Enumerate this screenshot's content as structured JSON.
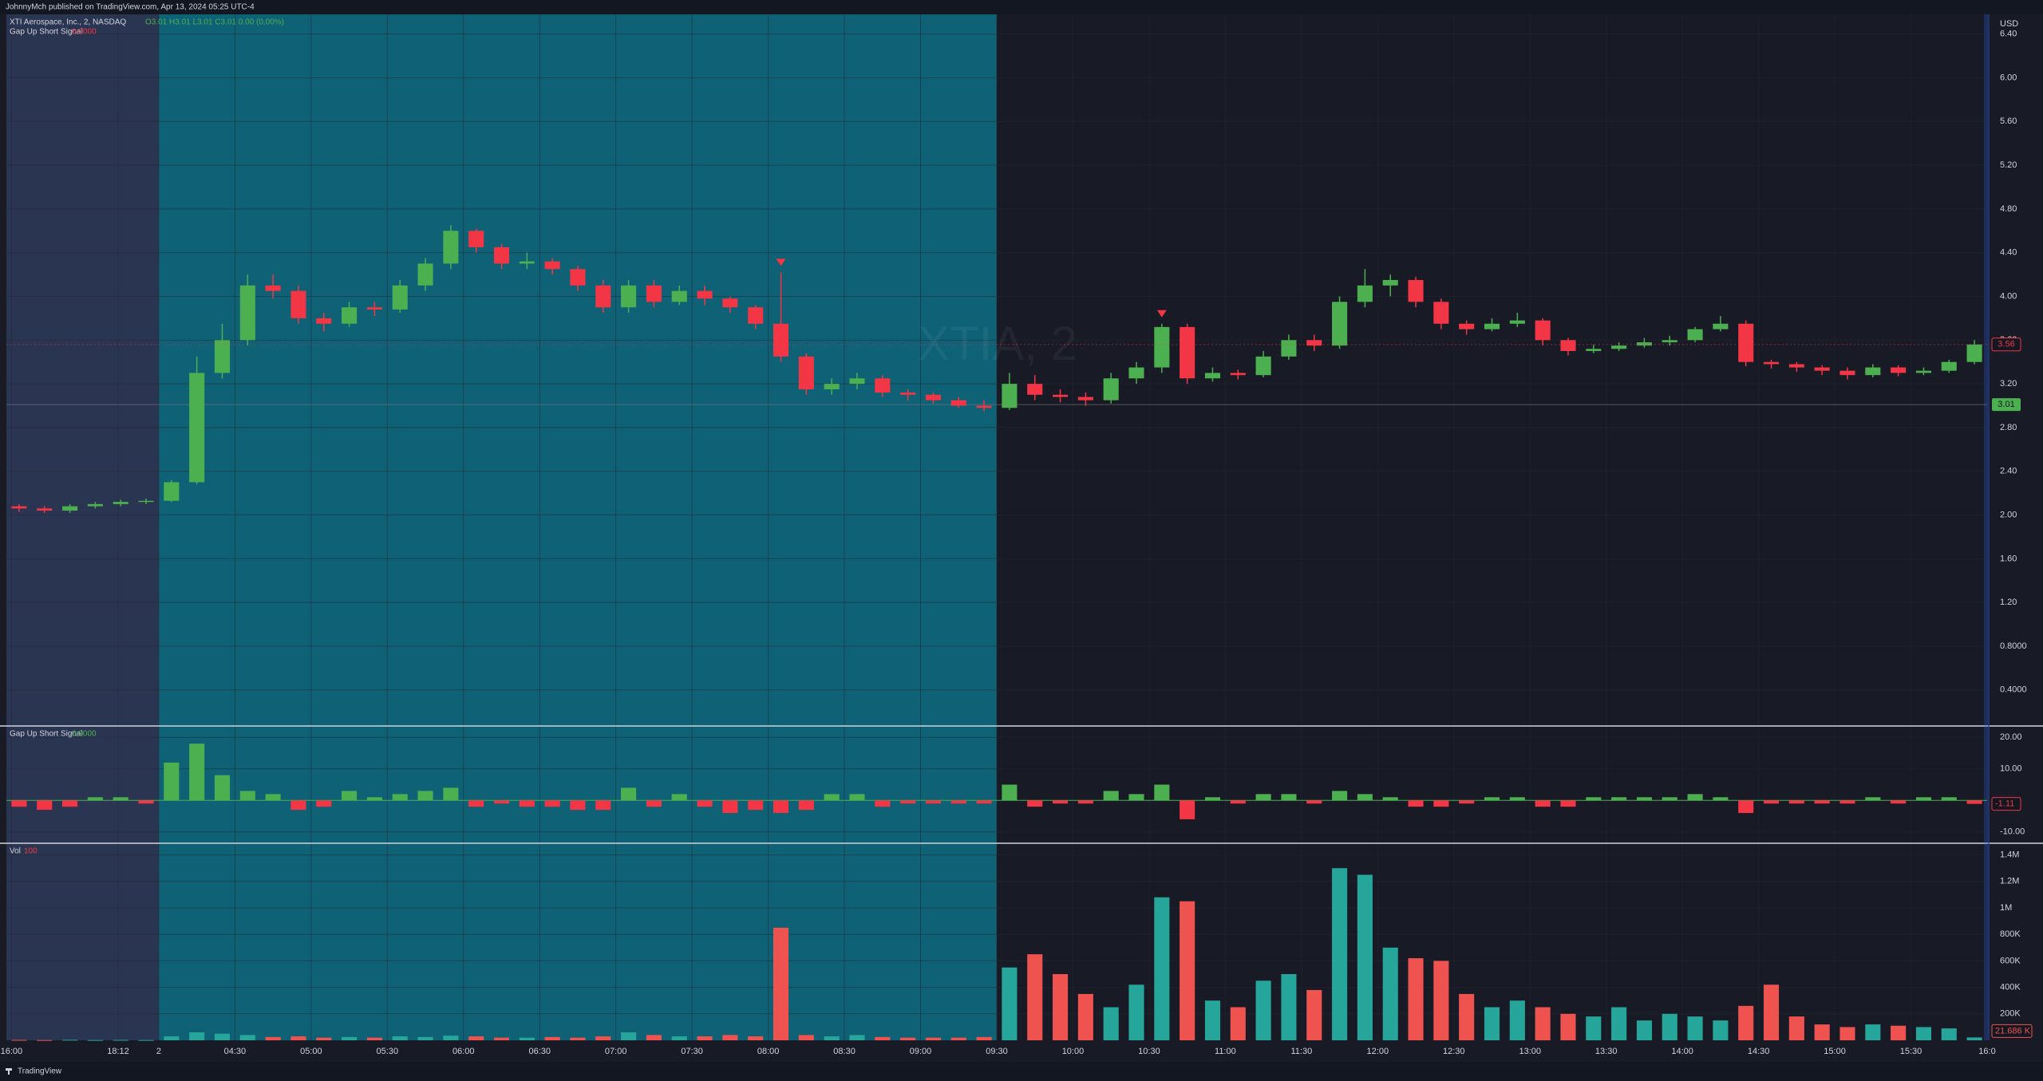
{
  "header": "JohnnyMch published on TradingView.com, Apr 13, 2024 05:25 UTC-4",
  "footer": "TradingView",
  "currency": "USD",
  "watermark": "XTIA, 2",
  "chart_data": [
    {
      "type": "candlestick",
      "title": "XTI Aerospace, Inc., 2, NASDAQ",
      "legend_values": "O3.01 H3.01 L3.01 C3.01 0.00 (0.00%)",
      "indicator_name": "Gap Up Short Signal",
      "indicator_value": "0.0000",
      "colors": {
        "up": "#4caf50",
        "down": "#f23645",
        "signal": "#f23645"
      },
      "sessions": [
        {
          "from": 0,
          "to": 6,
          "color": "#2a3552"
        },
        {
          "from": 6,
          "to": 39,
          "color": "#0f6175"
        }
      ],
      "open": [
        2.08,
        2.06,
        2.04,
        2.08,
        2.1,
        2.12,
        2.13,
        2.3,
        3.3,
        3.6,
        4.1,
        4.05,
        3.8,
        3.75,
        3.9,
        3.88,
        4.1,
        4.3,
        4.6,
        4.45,
        4.3,
        4.32,
        4.25,
        4.1,
        3.9,
        4.1,
        3.95,
        4.05,
        3.98,
        3.9,
        3.75,
        3.45,
        3.15,
        3.2,
        3.25,
        3.12,
        3.1,
        3.05,
        3.0,
        2.98,
        3.2,
        3.1,
        3.08,
        3.05,
        3.25,
        3.35,
        3.72,
        3.25,
        3.3,
        3.28,
        3.45,
        3.6,
        3.55,
        3.95,
        4.1,
        4.15,
        3.95,
        3.75,
        3.7,
        3.75,
        3.78,
        3.6,
        3.5,
        3.52,
        3.55,
        3.58,
        3.6,
        3.7,
        3.75,
        3.4,
        3.38,
        3.35,
        3.32,
        3.28,
        3.35,
        3.3,
        3.32,
        3.4
      ],
      "high": [
        2.1,
        2.08,
        2.1,
        2.12,
        2.14,
        2.15,
        2.32,
        3.45,
        3.75,
        4.2,
        4.2,
        4.1,
        3.85,
        3.95,
        3.95,
        4.15,
        4.35,
        4.65,
        4.62,
        4.48,
        4.4,
        4.35,
        4.28,
        4.15,
        4.15,
        4.15,
        4.1,
        4.1,
        4.0,
        3.92,
        4.22,
        3.48,
        3.25,
        3.3,
        3.28,
        3.15,
        3.12,
        3.08,
        3.05,
        3.3,
        3.28,
        3.15,
        3.12,
        3.3,
        3.4,
        3.75,
        3.75,
        3.35,
        3.33,
        3.5,
        3.65,
        3.65,
        4.0,
        4.25,
        4.2,
        4.18,
        3.98,
        3.78,
        3.8,
        3.85,
        3.8,
        3.62,
        3.56,
        3.58,
        3.62,
        3.64,
        3.72,
        3.82,
        3.78,
        3.42,
        3.4,
        3.37,
        3.35,
        3.38,
        3.37,
        3.35,
        3.42,
        3.6
      ],
      "low": [
        2.03,
        2.02,
        2.02,
        2.06,
        2.08,
        2.1,
        2.12,
        2.28,
        3.25,
        3.55,
        3.98,
        3.75,
        3.68,
        3.72,
        3.82,
        3.85,
        4.05,
        4.25,
        4.4,
        4.25,
        4.25,
        4.2,
        4.05,
        3.85,
        3.85,
        3.9,
        3.92,
        3.92,
        3.85,
        3.7,
        3.4,
        3.1,
        3.1,
        3.15,
        3.08,
        3.05,
        3.02,
        2.98,
        2.95,
        2.96,
        3.05,
        3.03,
        3.0,
        3.02,
        3.2,
        3.3,
        3.2,
        3.22,
        3.24,
        3.26,
        3.42,
        3.5,
        3.52,
        3.9,
        4.0,
        3.9,
        3.7,
        3.65,
        3.68,
        3.72,
        3.55,
        3.46,
        3.48,
        3.5,
        3.53,
        3.55,
        3.58,
        3.68,
        3.36,
        3.34,
        3.31,
        3.28,
        3.24,
        3.26,
        3.27,
        3.28,
        3.3,
        3.38
      ],
      "close": [
        2.06,
        2.04,
        2.08,
        2.1,
        2.12,
        2.13,
        2.3,
        3.3,
        3.6,
        4.1,
        4.05,
        3.8,
        3.75,
        3.9,
        3.88,
        4.1,
        4.3,
        4.6,
        4.45,
        4.3,
        4.32,
        4.25,
        4.1,
        3.9,
        4.1,
        3.95,
        4.05,
        3.98,
        3.9,
        3.75,
        3.45,
        3.15,
        3.2,
        3.25,
        3.12,
        3.1,
        3.05,
        3.0,
        2.98,
        3.2,
        3.1,
        3.08,
        3.05,
        3.25,
        3.35,
        3.72,
        3.25,
        3.3,
        3.28,
        3.45,
        3.6,
        3.55,
        3.95,
        4.1,
        4.15,
        3.95,
        3.75,
        3.7,
        3.75,
        3.78,
        3.6,
        3.5,
        3.52,
        3.55,
        3.58,
        3.6,
        3.7,
        3.75,
        3.4,
        3.38,
        3.35,
        3.32,
        3.28,
        3.35,
        3.3,
        3.32,
        3.4,
        3.56
      ],
      "signals": [
        30,
        45
      ],
      "prev_close": 3.01,
      "xlim": [
        0,
        78
      ],
      "xticks": [
        {
          "value": 0.2,
          "label": "16:00"
        },
        {
          "value": 4.4,
          "label": "18:12"
        },
        {
          "value": 6,
          "label": "2"
        },
        {
          "value": 9,
          "label": "04:30"
        },
        {
          "value": 12,
          "label": "05:00"
        },
        {
          "value": 15,
          "label": "05:30"
        },
        {
          "value": 18,
          "label": "06:00"
        },
        {
          "value": 21,
          "label": "06:30"
        },
        {
          "value": 24,
          "label": "07:00"
        },
        {
          "value": 27,
          "label": "07:30"
        },
        {
          "value": 30,
          "label": "08:00"
        },
        {
          "value": 33,
          "label": "08:30"
        },
        {
          "value": 36,
          "label": "09:00"
        },
        {
          "value": 39,
          "label": "09:30"
        },
        {
          "value": 42,
          "label": "10:00"
        },
        {
          "value": 45,
          "label": "10:30"
        },
        {
          "value": 48,
          "label": "11:00"
        },
        {
          "value": 51,
          "label": "11:30"
        },
        {
          "value": 54,
          "label": "12:00"
        },
        {
          "value": 57,
          "label": "12:30"
        },
        {
          "value": 60,
          "label": "13:00"
        },
        {
          "value": 63,
          "label": "13:30"
        },
        {
          "value": 66,
          "label": "14:00"
        },
        {
          "value": 69,
          "label": "14:30"
        },
        {
          "value": 72,
          "label": "15:00"
        },
        {
          "value": 75,
          "label": "15:30"
        },
        {
          "value": 78,
          "label": "16:0"
        }
      ],
      "ylim": [
        0.07,
        6.58
      ],
      "yticks": [
        {
          "value": 6.4,
          "label": "6.40"
        },
        {
          "value": 6,
          "label": "6.00"
        },
        {
          "value": 5.6,
          "label": "5.60"
        },
        {
          "value": 5.2,
          "label": "5.20"
        },
        {
          "value": 4.8,
          "label": "4.80"
        },
        {
          "value": 4.4,
          "label": "4.40"
        },
        {
          "value": 4,
          "label": "4.00"
        },
        {
          "value": 3.6,
          "label": "3.60"
        },
        {
          "value": 3.2,
          "label": "3.20"
        },
        {
          "value": 2.8,
          "label": "2.80"
        },
        {
          "value": 2.4,
          "label": "2.40"
        },
        {
          "value": 2,
          "label": "2.00"
        },
        {
          "value": 1.6,
          "label": "1.60"
        },
        {
          "value": 1.2,
          "label": "1.20"
        },
        {
          "value": 0.8,
          "label": "0.8000"
        },
        {
          "value": 0.4,
          "label": "0.4000"
        }
      ],
      "grid": true
    },
    {
      "type": "bar",
      "title": "Gap Up Short Signal",
      "legend_value": "0.0000",
      "colors": {
        "up": "#4caf50",
        "down": "#f23645"
      },
      "values": [
        -2,
        -3,
        -2,
        1,
        1,
        -1,
        12,
        18,
        8,
        3,
        2,
        -3,
        -2,
        3,
        1,
        2,
        3,
        4,
        -2,
        -1,
        -2,
        -2,
        -3,
        -3,
        4,
        -2,
        2,
        -2,
        -4,
        -3,
        -4,
        -3,
        2,
        2,
        -2,
        -1,
        -1,
        -1,
        -1,
        5,
        -2,
        -1,
        -1,
        3,
        2,
        5,
        -6,
        1,
        -1,
        2,
        2,
        -1,
        3,
        2,
        1,
        -2,
        -2,
        -1,
        1,
        1,
        -2,
        -2,
        1,
        1,
        1,
        1,
        2,
        1,
        -4,
        -1,
        -1,
        -1,
        -1,
        1,
        -1,
        1,
        1,
        -1.11
      ],
      "ylim": [
        -13.6,
        23.6
      ],
      "yticks": [
        {
          "value": 20,
          "label": "20.00"
        },
        {
          "value": 10,
          "label": "10.00"
        },
        {
          "value": -10,
          "label": "-10.00"
        }
      ],
      "grid": true
    },
    {
      "type": "bar",
      "title": "Vol",
      "legend_value": "100",
      "colors": {
        "up": "#26a69a",
        "down": "#ef5350"
      },
      "values": [
        3000,
        2000,
        4000,
        2000,
        3000,
        2000,
        30000,
        60000,
        50000,
        40000,
        25000,
        30000,
        20000,
        25000,
        20000,
        30000,
        25000,
        35000,
        30000,
        20000,
        20000,
        25000,
        20000,
        30000,
        60000,
        40000,
        30000,
        30000,
        40000,
        30000,
        850000,
        40000,
        30000,
        40000,
        25000,
        20000,
        20000,
        20000,
        25000,
        550000,
        650000,
        500000,
        350000,
        250000,
        420000,
        1080000,
        1050000,
        300000,
        250000,
        450000,
        500000,
        380000,
        1300000,
        1250000,
        700000,
        620000,
        600000,
        350000,
        250000,
        300000,
        250000,
        200000,
        180000,
        250000,
        150000,
        200000,
        180000,
        150000,
        260000,
        420000,
        180000,
        120000,
        100000,
        120000,
        110000,
        100000,
        90000,
        21686
      ],
      "last_label": "21.686 K",
      "ylim": [
        0,
        1488000
      ],
      "yticks": [
        {
          "value": 1400000,
          "label": "1.4M"
        },
        {
          "value": 1200000,
          "label": "1.2M"
        },
        {
          "value": 1000000,
          "label": "1M"
        },
        {
          "value": 800000,
          "label": "800K"
        },
        {
          "value": 600000,
          "label": "600K"
        },
        {
          "value": 400000,
          "label": "400K"
        },
        {
          "value": 200000,
          "label": "200K"
        }
      ],
      "grid": true
    }
  ]
}
